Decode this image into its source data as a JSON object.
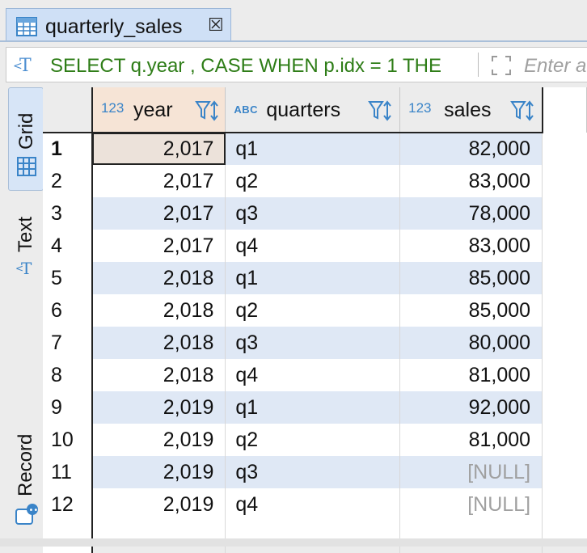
{
  "tab": {
    "title": "quarterly_sales",
    "close": "☒"
  },
  "filter": {
    "sql": "SELECT q.year , CASE WHEN p.idx = 1 THE",
    "placeholder": "Enter a"
  },
  "sidebar": {
    "tabs": [
      {
        "label": "Grid",
        "icon": "grid-icon"
      },
      {
        "label": "Text",
        "icon": "text-icon"
      },
      {
        "label": "Record",
        "icon": "record-icon"
      }
    ]
  },
  "grid": {
    "columns": [
      {
        "type": "123",
        "name": "year"
      },
      {
        "type": "ABC",
        "name": "quarters"
      },
      {
        "type": "123",
        "name": "sales"
      }
    ],
    "rows": [
      {
        "n": "1",
        "year": "2,017",
        "quarter": "q1",
        "sales": "82,000"
      },
      {
        "n": "2",
        "year": "2,017",
        "quarter": "q2",
        "sales": "83,000"
      },
      {
        "n": "3",
        "year": "2,017",
        "quarter": "q3",
        "sales": "78,000"
      },
      {
        "n": "4",
        "year": "2,017",
        "quarter": "q4",
        "sales": "83,000"
      },
      {
        "n": "5",
        "year": "2,018",
        "quarter": "q1",
        "sales": "85,000"
      },
      {
        "n": "6",
        "year": "2,018",
        "quarter": "q2",
        "sales": "85,000"
      },
      {
        "n": "7",
        "year": "2,018",
        "quarter": "q3",
        "sales": "80,000"
      },
      {
        "n": "8",
        "year": "2,018",
        "quarter": "q4",
        "sales": "81,000"
      },
      {
        "n": "9",
        "year": "2,019",
        "quarter": "q1",
        "sales": "92,000"
      },
      {
        "n": "10",
        "year": "2,019",
        "quarter": "q2",
        "sales": "81,000"
      },
      {
        "n": "11",
        "year": "2,019",
        "quarter": "q3",
        "sales": "[NULL]"
      },
      {
        "n": "12",
        "year": "2,019",
        "quarter": "q4",
        "sales": "[NULL]"
      }
    ]
  },
  "colors": {
    "accent": "#3a84c8",
    "sql_text": "#2e7d17",
    "row_alt": "#dfe8f5",
    "selected_cell": "#ece2da"
  }
}
